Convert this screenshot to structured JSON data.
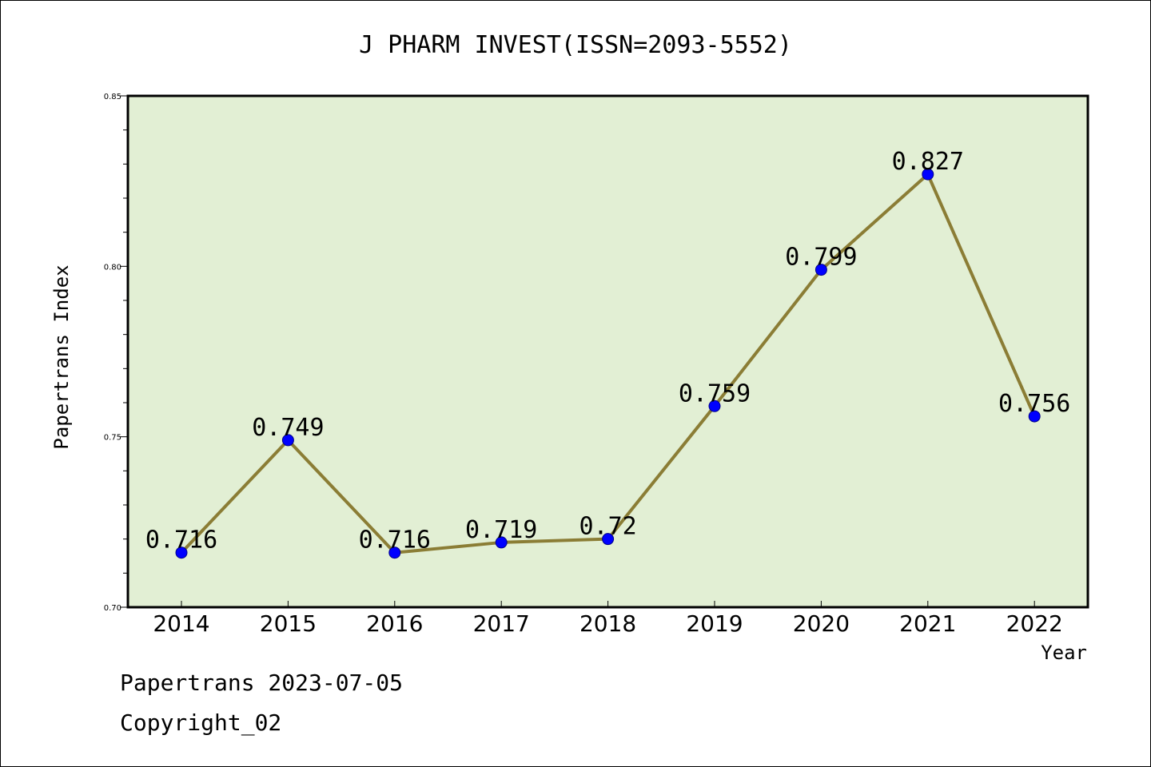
{
  "chart_data": {
    "type": "line",
    "title": "J PHARM INVEST(ISSN=2093-5552)",
    "xlabel": "Year",
    "ylabel": "Papertrans Index",
    "categories": [
      "2014",
      "2015",
      "2016",
      "2017",
      "2018",
      "2019",
      "2020",
      "2021",
      "2022"
    ],
    "values": [
      0.716,
      0.749,
      0.716,
      0.719,
      0.72,
      0.759,
      0.799,
      0.827,
      0.756
    ],
    "data_labels": [
      "0.716",
      "0.749",
      "0.716",
      "0.719",
      "0.72",
      "0.759",
      "0.799",
      "0.827",
      "0.756"
    ],
    "ylim": [
      0.7,
      0.85
    ],
    "yticks": [
      "0.70",
      "0.75",
      "0.80",
      "0.85"
    ],
    "grid": false,
    "colors": {
      "plot_background": "#e2efd4",
      "line": "#8b7d35",
      "marker": "#0000ff"
    }
  },
  "footer": {
    "line1": "Papertrans 2023-07-05",
    "line2": "Copyright_02"
  }
}
